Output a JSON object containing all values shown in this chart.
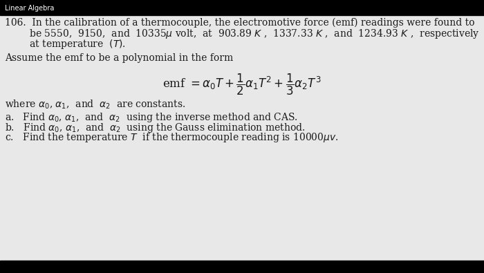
{
  "bg_color": "#000000",
  "text_color": "#1a1a1a",
  "content_bg": "#e8e8e8",
  "header_text": "Linear Algebra",
  "header_fontsize": 7.0,
  "main_fontsize": 10.0,
  "formula_fontsize": 12.0,
  "top_bar_height": 22,
  "bottom_bar_height": 18,
  "line1": "106.  In the calibration of a thermocouple, the electromotive force (emf) readings were found to",
  "line2": "        be 5550,  9150,  and  10335μvolt,  at  903.89 K ,  1337.33 K ,  and  1234.93 K ,  respectively",
  "line3": "        at temperature  (T).",
  "assume_line": "Assume the emf to be a polynomial in the form",
  "where_line": "where  α₀,α₁,  and  α₂  are constants.",
  "item_a": "a.   Find α₀, α₁,  and  α₂  using the inverse method and CAS.",
  "item_b": "b.   Find α₀, α₁,  and  α₂  using the Gauss elimination method.",
  "item_c": "c.   Find the temperature  T  if the thermocouple reading is 10000μv."
}
